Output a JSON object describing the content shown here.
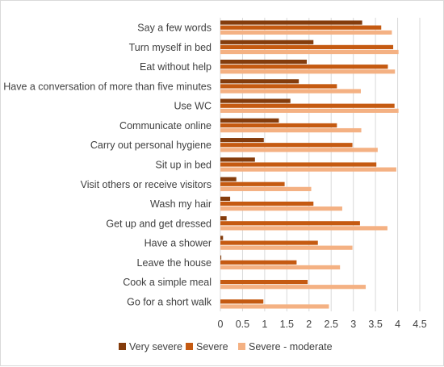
{
  "chart_data": {
    "type": "bar",
    "orientation": "horizontal",
    "title": "",
    "xlabel": "",
    "ylabel": "",
    "xlim": [
      0,
      4.5
    ],
    "x_ticks": [
      "0",
      "0.5",
      "1",
      "1.5",
      "2",
      "2.5",
      "3",
      "3.5",
      "4",
      "4.5"
    ],
    "grid": true,
    "legend_position": "bottom",
    "categories": [
      "Say a few words",
      "Turn myself in bed",
      "Eat without help",
      "Have a conversation of more than five minutes",
      "Use WC",
      "Communicate online",
      "Carry out personal hygiene",
      "Sit up in bed",
      "Visit others or receive visitors",
      "Wash my hair",
      "Get up and get dressed",
      "Have a shower",
      "Leave the house",
      "Cook a simple meal",
      "Go for a short walk"
    ],
    "series": [
      {
        "name": "Very severe",
        "color": "#843C0C",
        "values": [
          3.2,
          2.1,
          1.95,
          1.77,
          1.58,
          1.32,
          0.98,
          0.78,
          0.36,
          0.22,
          0.14,
          0.06,
          0.02,
          0.0,
          0.0
        ]
      },
      {
        "name": "Severe",
        "color": "#C55A11",
        "values": [
          3.63,
          3.9,
          3.78,
          2.63,
          3.93,
          2.63,
          2.98,
          3.52,
          1.45,
          2.1,
          3.15,
          2.2,
          1.72,
          1.97,
          0.97
        ]
      },
      {
        "name": "Severe - moderate",
        "color": "#F4B183",
        "values": [
          3.87,
          4.02,
          3.94,
          3.17,
          4.02,
          3.18,
          3.55,
          3.97,
          2.05,
          2.75,
          3.77,
          2.98,
          2.7,
          3.28,
          2.45
        ]
      }
    ]
  }
}
